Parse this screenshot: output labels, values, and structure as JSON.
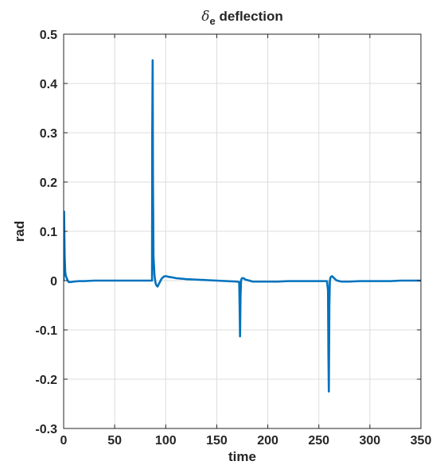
{
  "chart_data": {
    "type": "line",
    "title_symbol": "δ",
    "title_subscript": "e",
    "title_rest": " deflection",
    "xlabel": "time",
    "ylabel": "rad",
    "xlim": [
      0,
      350
    ],
    "ylim": [
      -0.3,
      0.5
    ],
    "x_ticks": [
      0,
      50,
      100,
      150,
      200,
      250,
      300,
      350
    ],
    "y_ticks": [
      -0.3,
      -0.2,
      -0.1,
      0,
      0.1,
      0.2,
      0.3,
      0.4,
      0.5
    ],
    "grid": true,
    "series_color": "#0072BD",
    "series": [
      {
        "x": [
          0,
          0.4,
          1,
          1.5,
          2,
          3,
          4,
          5,
          7,
          10,
          15,
          20,
          30,
          40,
          50,
          60,
          70,
          80,
          85,
          86.6,
          86.8,
          87.2,
          87.5,
          88,
          88.5,
          89,
          90,
          91,
          92,
          93,
          94,
          95,
          96,
          98,
          100,
          102,
          105,
          110,
          120,
          130,
          140,
          150,
          160,
          170,
          172,
          172.4,
          172.8,
          173.3,
          173.8,
          174.4,
          175,
          176,
          177,
          178,
          180,
          182,
          185,
          190,
          200,
          210,
          220,
          230,
          240,
          250,
          255,
          258,
          259,
          259.4,
          259.8,
          260.3,
          260.8,
          261.4,
          262,
          263,
          264,
          265,
          266,
          267,
          268,
          270,
          272,
          275,
          280,
          290,
          300,
          310,
          320,
          330,
          340,
          350
        ],
        "y": [
          0,
          0.14,
          0.05,
          0.02,
          0.01,
          0.005,
          0,
          -0.003,
          -0.003,
          -0.002,
          -0.001,
          -0.001,
          0,
          0,
          0,
          0,
          0,
          0,
          0,
          0,
          0.3,
          0.447,
          0.2,
          0.05,
          0.03,
          0.01,
          -0.005,
          -0.01,
          -0.012,
          -0.008,
          -0.004,
          0,
          0.004,
          0.008,
          0.009,
          0.008,
          0.007,
          0.005,
          0.003,
          0.002,
          0.001,
          0,
          -0.001,
          -0.002,
          -0.003,
          -0.05,
          -0.113,
          -0.03,
          0,
          0.004,
          0.005,
          0.005,
          0.004,
          0.002,
          0.001,
          0,
          -0.002,
          -0.002,
          -0.002,
          -0.002,
          -0.001,
          -0.001,
          -0.001,
          -0.001,
          -0.001,
          -0.001,
          -0.02,
          -0.15,
          -0.225,
          -0.05,
          0,
          0.006,
          0.008,
          0.009,
          0.007,
          0.005,
          0.003,
          0.001,
          0,
          -0.001,
          -0.002,
          -0.002,
          -0.002,
          -0.001,
          -0.001,
          -0.001,
          -0.001,
          0,
          0,
          0
        ]
      }
    ]
  }
}
